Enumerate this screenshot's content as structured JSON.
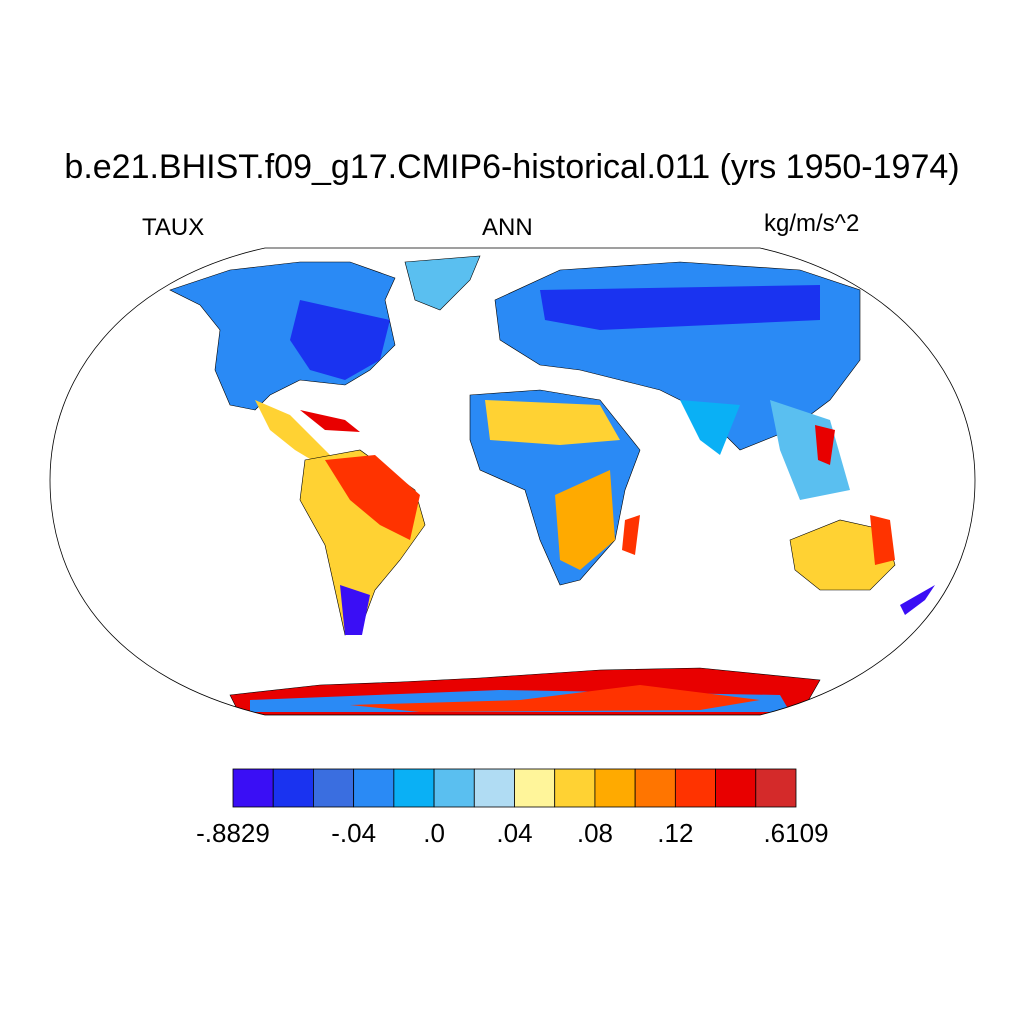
{
  "title": "b.e21.BHIST.f09_g17.CMIP6-historical.011 (yrs 1950-1974)",
  "left_label": "TAUX",
  "center_label": "ANN",
  "right_label": "kg/m/s^2",
  "colorbar": {
    "colors": [
      "#3a0ef5",
      "#1a33f0",
      "#3a6ee0",
      "#2a8af5",
      "#0ab0f5",
      "#5abff0",
      "#b0dcf3",
      "#fff59a",
      "#ffd233",
      "#ffaa00",
      "#ff7500",
      "#ff3300",
      "#e80000",
      "#d42a2a"
    ],
    "tick_labels": [
      "-.8829",
      "-.04",
      ".0",
      ".04",
      ".08",
      ".12",
      ".6109"
    ],
    "tick_boundaries": [
      0,
      3,
      5,
      7,
      9,
      11,
      14
    ]
  }
}
